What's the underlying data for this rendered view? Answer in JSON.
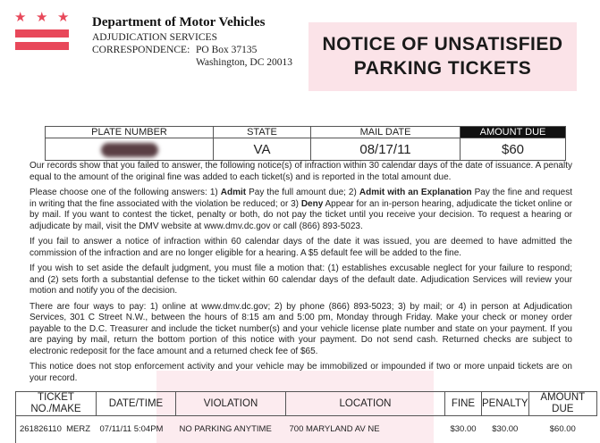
{
  "header": {
    "department": "Department of Motor Vehicles",
    "division": "ADJUDICATION SERVICES",
    "correspondence_label": "CORRESPONDENCE:",
    "address_line1": "PO Box 37135",
    "address_line2": "Washington, DC 20013",
    "title_line1": "NOTICE OF UNSATISFIED",
    "title_line2": "PARKING TICKETS"
  },
  "summary": {
    "headers": [
      "PLATE NUMBER",
      "STATE",
      "MAIL DATE",
      "AMOUNT DUE"
    ],
    "plate_number": "",
    "state": "VA",
    "mail_date": "08/17/11",
    "amount_due": "$60"
  },
  "paragraphs": {
    "p1": "Our records show that you failed to answer, the following notice(s) of infraction within 30 calendar days of the date of issuance. A penalty equal to the amount of the original fine was added to each ticket(s) and is reported in the total amount due.",
    "p2_a": "Please choose one of the following answers: 1) ",
    "p2_b": "Admit",
    "p2_c": " Pay the full amount due; 2) ",
    "p2_d": "Admit with an Explanation",
    "p2_e": " Pay the fine and request in writing that the fine associated with the violation be reduced; or 3) ",
    "p2_f": "Deny",
    "p2_g": " Appear for an in-person hearing, adjudicate the ticket online or by mail. If you want to contest the ticket, penalty or both, do not pay the ticket until you receive your decision. To request a hearing or adjudicate by mail, visit the DMV website at www.dmv.dc.gov or call (866) 893-5023.",
    "p3": "If you fail to answer a notice of infraction within 60 calendar days of the date it was issued, you are deemed to have admitted the commission of the infraction and are no longer eligible for a hearing. A $5 default fee will be added to the fine.",
    "p4": "If you wish to set aside the default judgment, you must file a motion that: (1) establishes excusable neglect for your failure to respond; and (2) sets forth a substantial defense to the ticket within 60 calendar days of the default date. Adjudication Services will review your motion and notify you of the decision.",
    "p5": "There are four ways to pay: 1) online at www.dmv.dc.gov; 2) by phone (866) 893-5023; 3) by mail; or 4) in person at Adjudication Services, 301 C Street N.W., between the hours of 8:15 am and 5:00 pm, Monday through Friday. Make your check or money order payable to the D.C. Treasurer and include the ticket number(s) and your vehicle license plate number and state on your payment. If you are paying by mail, return the bottom portion of this notice with your payment. Do not send cash. Returned checks are subject to electronic redeposit for the face amount and a returned check fee of $65.",
    "p6": "This notice does not stop enforcement activity and your vehicle may be immobilized or impounded if two or more unpaid tickets are on your record."
  },
  "tickets": {
    "headers": [
      "TICKET NO./MAKE",
      "DATE/TIME",
      "VIOLATION",
      "LOCATION",
      "FINE",
      "PENALTY",
      "AMOUNT DUE"
    ],
    "rows": [
      {
        "ticket": "261826110",
        "make": "MERZ",
        "datetime": "07/11/11  5:04PM",
        "violation": "NO PARKING ANYTIME",
        "location": "700 MARYLAND AV NE",
        "fine": "$30.00",
        "penalty": "$30.00",
        "amount_due": "$60.00"
      }
    ]
  },
  "colors": {
    "flag_red": "#e8485a",
    "title_bg": "#fbe3e8"
  }
}
